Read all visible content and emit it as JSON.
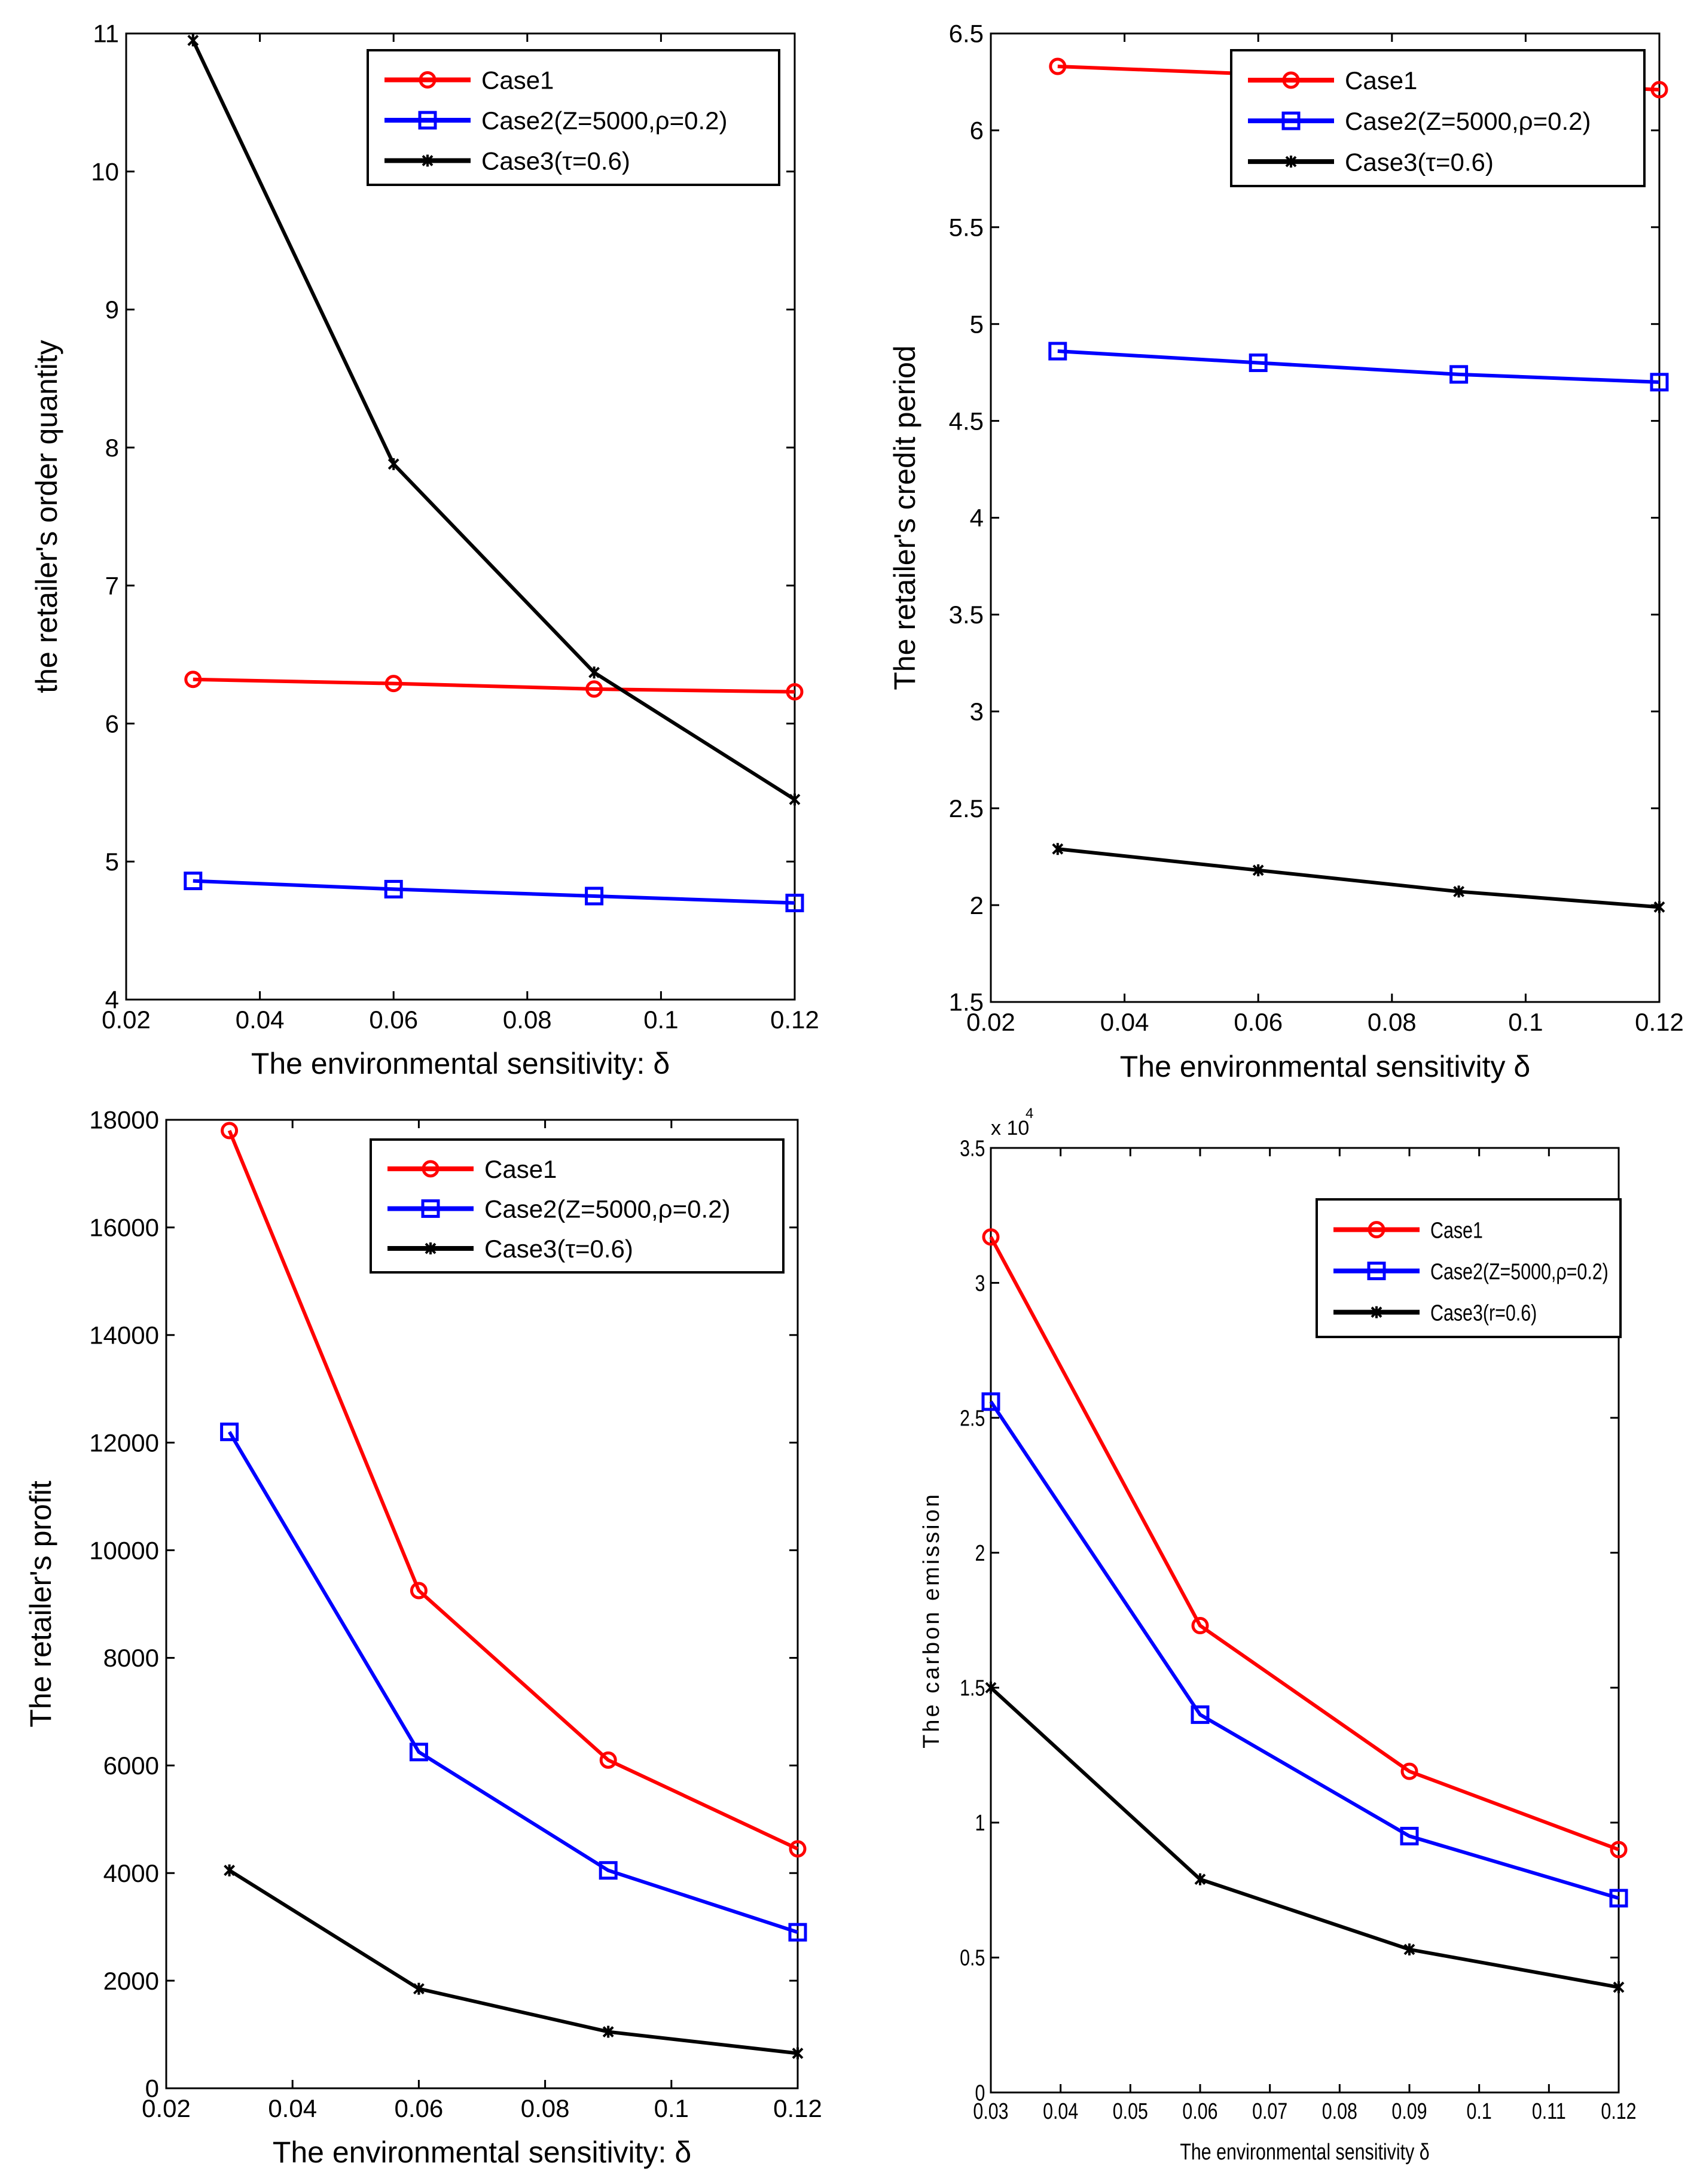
{
  "colors": {
    "case1": "#ff0000",
    "case2": "#0000ff",
    "case3": "#000000"
  },
  "chart_data": [
    {
      "type": "line",
      "title": "",
      "xlabel": "The environmental sensitivity: δ",
      "ylabel": "the retailer's order quantity",
      "xlim": [
        0.02,
        0.12
      ],
      "ylim": [
        4,
        11
      ],
      "xticks": [
        "0.02",
        "0.04",
        "0.06",
        "0.08",
        "0.1",
        "0.12"
      ],
      "yticks": [
        "4",
        "5",
        "6",
        "7",
        "8",
        "9",
        "10",
        "11"
      ],
      "legend_position": "top-right",
      "x": [
        0.03,
        0.06,
        0.09,
        0.12
      ],
      "series": [
        {
          "name": "Case1",
          "marker": "circle",
          "values": [
            6.32,
            6.29,
            6.25,
            6.23
          ]
        },
        {
          "name": "Case2(Z=5000,ρ=0.2)",
          "marker": "square",
          "values": [
            4.86,
            4.8,
            4.75,
            4.7
          ]
        },
        {
          "name": "Case3(τ=0.6)",
          "marker": "star",
          "values": [
            10.95,
            7.88,
            6.37,
            5.45
          ]
        }
      ]
    },
    {
      "type": "line",
      "title": "",
      "xlabel": "The environmental sensitivity δ",
      "ylabel": "The retailer's credit period",
      "xlim": [
        0.02,
        0.12
      ],
      "ylim": [
        1.5,
        6.5
      ],
      "xticks": [
        "0.02",
        "0.04",
        "0.06",
        "0.08",
        "0.1",
        "0.12"
      ],
      "yticks": [
        "1.5",
        "2",
        "2.5",
        "3",
        "3.5",
        "4",
        "4.5",
        "5",
        "5.5",
        "6",
        "6.5"
      ],
      "legend_position": "top-right",
      "x": [
        0.03,
        0.06,
        0.09,
        0.12
      ],
      "series": [
        {
          "name": "Case1",
          "marker": "circle",
          "values": [
            6.33,
            6.29,
            6.25,
            6.21
          ]
        },
        {
          "name": "Case2(Z=5000,ρ=0.2)",
          "marker": "square",
          "values": [
            4.86,
            4.8,
            4.74,
            4.7
          ]
        },
        {
          "name": "Case3(τ=0.6)",
          "marker": "star",
          "values": [
            2.29,
            2.18,
            2.07,
            1.99
          ]
        }
      ]
    },
    {
      "type": "line",
      "title": "",
      "xlabel": "The environmental sensitivity: δ",
      "ylabel": "The retailer's profit",
      "xlim": [
        0.02,
        0.12
      ],
      "ylim": [
        0,
        18000
      ],
      "xticks": [
        "0.02",
        "0.04",
        "0.06",
        "0.08",
        "0.1",
        "0.12"
      ],
      "yticks": [
        "0",
        "2000",
        "4000",
        "6000",
        "8000",
        "10000",
        "12000",
        "14000",
        "16000",
        "18000"
      ],
      "legend_position": "top-right",
      "x": [
        0.03,
        0.06,
        0.09,
        0.12
      ],
      "series": [
        {
          "name": "Case1",
          "marker": "circle",
          "values": [
            17800,
            9250,
            6100,
            4450
          ]
        },
        {
          "name": "Case2(Z=5000,ρ=0.2)",
          "marker": "square",
          "values": [
            12200,
            6250,
            4050,
            2900
          ]
        },
        {
          "name": "Case3(τ=0.6)",
          "marker": "star",
          "values": [
            4050,
            1850,
            1050,
            650
          ]
        }
      ]
    },
    {
      "type": "line",
      "title": "",
      "xlabel": "The environmental sensitivity δ",
      "ylabel": "The carbon emission",
      "y_multiplier": "x 10",
      "y_multiplier_exp": "4",
      "xlim": [
        0.03,
        0.12
      ],
      "ylim": [
        0,
        3.5
      ],
      "xticks": [
        "0.03",
        "0.04",
        "0.05",
        "0.06",
        "0.07",
        "0.08",
        "0.09",
        "0.1",
        "0.11",
        "0.12"
      ],
      "yticks": [
        "0",
        "0.5",
        "1",
        "1.5",
        "2",
        "2.5",
        "3",
        "3.5"
      ],
      "legend_position": "top-right",
      "x": [
        0.03,
        0.06,
        0.09,
        0.12
      ],
      "series": [
        {
          "name": "Case1",
          "marker": "circle",
          "values": [
            3.17,
            1.73,
            1.19,
            0.9
          ]
        },
        {
          "name": "Case2(Z=5000,ρ=0.2)",
          "marker": "square",
          "values": [
            2.56,
            1.4,
            0.95,
            0.72
          ]
        },
        {
          "name": "Case3(r=0.6)",
          "marker": "star",
          "values": [
            1.5,
            0.79,
            0.53,
            0.39
          ]
        }
      ]
    }
  ]
}
